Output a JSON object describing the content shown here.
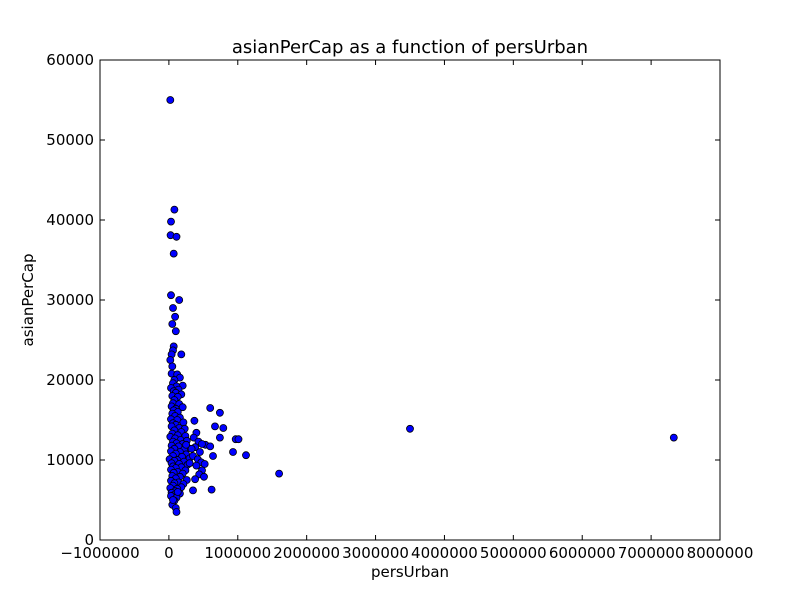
{
  "chart_data": {
    "type": "scatter",
    "title": "asianPerCap as a function of persUrban",
    "xlabel": "persUrban",
    "ylabel": "asianPerCap",
    "xlim": [
      -1000000,
      8000000
    ],
    "ylim": [
      0,
      60000
    ],
    "xticks": [
      -1000000,
      0,
      1000000,
      2000000,
      3000000,
      4000000,
      5000000,
      6000000,
      7000000,
      8000000
    ],
    "xtick_labels": [
      "−1000000",
      "0",
      "1000000",
      "2000000",
      "3000000",
      "4000000",
      "5000000",
      "6000000",
      "7000000",
      "8000000"
    ],
    "yticks": [
      0,
      10000,
      20000,
      30000,
      40000,
      50000,
      60000
    ],
    "ytick_labels": [
      "0",
      "10000",
      "20000",
      "30000",
      "40000",
      "50000",
      "60000"
    ],
    "grid": false,
    "marker_color": "#0000ff",
    "marker_edge": "#000000",
    "points": [
      [
        20000,
        55000
      ],
      [
        80000,
        41300
      ],
      [
        30000,
        39800
      ],
      [
        25000,
        38100
      ],
      [
        110000,
        37900
      ],
      [
        70000,
        35800
      ],
      [
        30000,
        30600
      ],
      [
        150000,
        30000
      ],
      [
        60000,
        29000
      ],
      [
        90000,
        27900
      ],
      [
        50000,
        27000
      ],
      [
        100000,
        26100
      ],
      [
        70000,
        24200
      ],
      [
        60000,
        23700
      ],
      [
        180000,
        23200
      ],
      [
        40000,
        23200
      ],
      [
        20000,
        22500
      ],
      [
        50000,
        21700
      ],
      [
        40000,
        20800
      ],
      [
        120000,
        20700
      ],
      [
        160000,
        20300
      ],
      [
        80000,
        20000
      ],
      [
        60000,
        19600
      ],
      [
        200000,
        19300
      ],
      [
        110000,
        19200
      ],
      [
        30000,
        19000
      ],
      [
        140000,
        18800
      ],
      [
        70000,
        18600
      ],
      [
        100000,
        18400
      ],
      [
        180000,
        18200
      ],
      [
        50000,
        18000
      ],
      [
        130000,
        17900
      ],
      [
        80000,
        17500
      ],
      [
        60000,
        17100
      ],
      [
        150000,
        17000
      ],
      [
        40000,
        16700
      ],
      [
        200000,
        16600
      ],
      [
        100000,
        16400
      ],
      [
        70000,
        16200
      ],
      [
        130000,
        16000
      ],
      [
        50000,
        15800
      ],
      [
        90000,
        15500
      ],
      [
        160000,
        15300
      ],
      [
        30000,
        15100
      ],
      [
        120000,
        15000
      ],
      [
        210000,
        14700
      ],
      [
        60000,
        14600
      ],
      [
        100000,
        14400
      ],
      [
        40000,
        14200
      ],
      [
        150000,
        14000
      ],
      [
        230000,
        13900
      ],
      [
        80000,
        13700
      ],
      [
        180000,
        13500
      ],
      [
        50000,
        13300
      ],
      [
        130000,
        13100
      ],
      [
        240000,
        13000
      ],
      [
        20000,
        12900
      ],
      [
        90000,
        12700
      ],
      [
        170000,
        12500
      ],
      [
        260000,
        12400
      ],
      [
        60000,
        12300
      ],
      [
        110000,
        12100
      ],
      [
        200000,
        12000
      ],
      [
        40000,
        11800
      ],
      [
        140000,
        11700
      ],
      [
        280000,
        11500
      ],
      [
        80000,
        11400
      ],
      [
        220000,
        11300
      ],
      [
        30000,
        11100
      ],
      [
        160000,
        11000
      ],
      [
        100000,
        10800
      ],
      [
        250000,
        10700
      ],
      [
        60000,
        10500
      ],
      [
        190000,
        10400
      ],
      [
        10000,
        10100
      ],
      [
        120000,
        10000
      ],
      [
        300000,
        10200
      ],
      [
        80000,
        9900
      ],
      [
        220000,
        9800
      ],
      [
        40000,
        9600
      ],
      [
        150000,
        9500
      ],
      [
        270000,
        9400
      ],
      [
        60000,
        9200
      ],
      [
        180000,
        9100
      ],
      [
        100000,
        9000
      ],
      [
        30000,
        8800
      ],
      [
        240000,
        8700
      ],
      [
        130000,
        8500
      ],
      [
        70000,
        8400
      ],
      [
        200000,
        8300
      ],
      [
        50000,
        8000
      ],
      [
        160000,
        7900
      ],
      [
        100000,
        7700
      ],
      [
        260000,
        7500
      ],
      [
        30000,
        7400
      ],
      [
        140000,
        7200
      ],
      [
        80000,
        7100
      ],
      [
        210000,
        7000
      ],
      [
        60000,
        6800
      ],
      [
        180000,
        6600
      ],
      [
        20000,
        6500
      ],
      [
        120000,
        6400
      ],
      [
        90000,
        6100
      ],
      [
        40000,
        5900
      ],
      [
        160000,
        5800
      ],
      [
        70000,
        5600
      ],
      [
        30000,
        5500
      ],
      [
        110000,
        5300
      ],
      [
        80000,
        4900
      ],
      [
        50000,
        4400
      ],
      [
        100000,
        4000
      ],
      [
        110000,
        3500
      ],
      [
        60000,
        5000
      ],
      [
        130000,
        6000
      ],
      [
        370000,
        14900
      ],
      [
        400000,
        13400
      ],
      [
        360000,
        12800
      ],
      [
        430000,
        12300
      ],
      [
        380000,
        11600
      ],
      [
        450000,
        11000
      ],
      [
        350000,
        10500
      ],
      [
        420000,
        10100
      ],
      [
        470000,
        9700
      ],
      [
        400000,
        9300
      ],
      [
        520000,
        9500
      ],
      [
        480000,
        8700
      ],
      [
        440000,
        8200
      ],
      [
        510000,
        7900
      ],
      [
        380000,
        7600
      ],
      [
        350000,
        6200
      ],
      [
        530000,
        11900
      ],
      [
        600000,
        11700
      ],
      [
        480000,
        12000
      ],
      [
        620000,
        6300
      ],
      [
        600000,
        16500
      ],
      [
        740000,
        15900
      ],
      [
        670000,
        14200
      ],
      [
        790000,
        14000
      ],
      [
        740000,
        12800
      ],
      [
        970000,
        12600
      ],
      [
        1010000,
        12600
      ],
      [
        930000,
        11000
      ],
      [
        640000,
        10500
      ],
      [
        1120000,
        10600
      ],
      [
        1600000,
        8300
      ],
      [
        3500000,
        13900
      ],
      [
        7330000,
        12800
      ],
      [
        330000,
        11400
      ],
      [
        300000,
        9600
      ],
      [
        250000,
        11900
      ]
    ]
  }
}
